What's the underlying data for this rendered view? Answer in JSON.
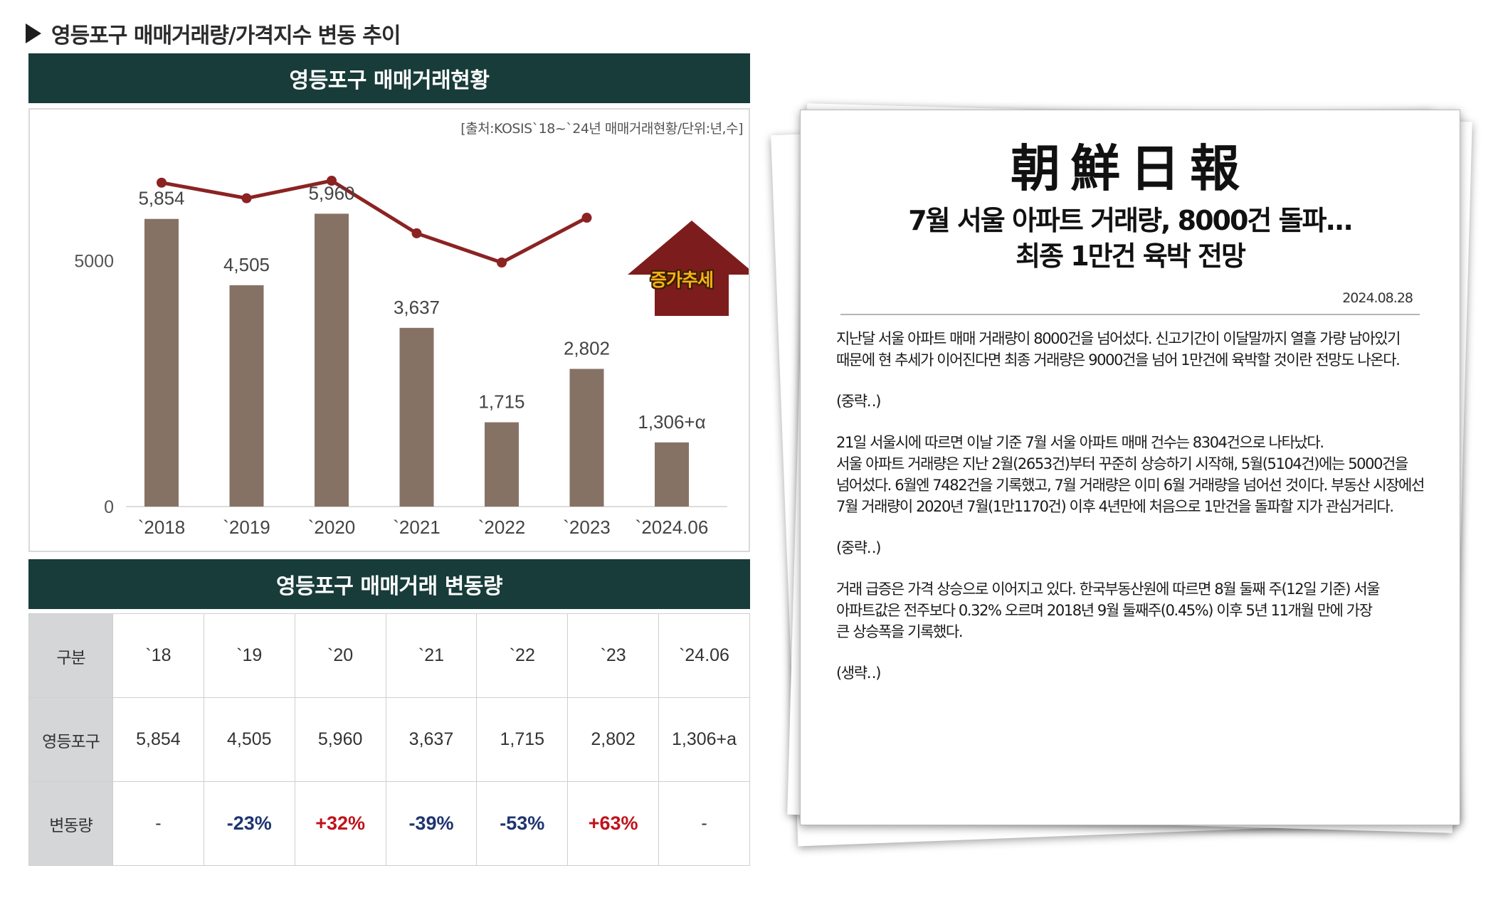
{
  "section_title": "영등포구 매매거래량/가격지수 변동 추이",
  "chart_header": "영등포구 매매거래현황",
  "chart_source": "[출처:KOSIS`18~`24년 매매거래현황/단위:년,수]",
  "trend_label": "증가추세",
  "colors": {
    "header_bg": "#173c3a",
    "bar": "#867265",
    "line": "#8b2323",
    "arrow": "#7d1c1c",
    "negative": "#1e3470",
    "positive": "#c0131b"
  },
  "chart_data": {
    "type": "bar",
    "categories": [
      "`2018",
      "`2019",
      "`2020",
      "`2021",
      "`2022",
      "`2023",
      "`2024.06"
    ],
    "values": [
      5854,
      4505,
      5960,
      3637,
      1715,
      2802,
      1306
    ],
    "value_labels": [
      "5,854",
      "4,505",
      "5,960",
      "3,637",
      "1,715",
      "2,802",
      "1,306+α"
    ],
    "y_ticks": [
      {
        "value": 0,
        "label": "0"
      },
      {
        "value": 5000,
        "label": "5000"
      }
    ],
    "ylim": [
      0,
      7500
    ],
    "line_overlay": {
      "type": "line",
      "points_count": 6,
      "relative_values": [
        90,
        82,
        91,
        64,
        49,
        72
      ]
    },
    "grid": false,
    "legend": "none",
    "title": "",
    "xlabel": "",
    "ylabel": ""
  },
  "table_header": "영등포구 매매거래 변동량",
  "table": {
    "columns": [
      "구분",
      "`18",
      "`19",
      "`20",
      "`21",
      "`22",
      "`23",
      "`24.06"
    ],
    "rows": [
      {
        "label": "영등포구",
        "cells": [
          "5,854",
          "4,505",
          "5,960",
          "3,637",
          "1,715",
          "2,802",
          "1,306+a"
        ]
      },
      {
        "label": "변동량",
        "cells": [
          "-",
          "-23%",
          "+32%",
          "-39%",
          "-53%",
          "+63%",
          "-"
        ],
        "signs": [
          "none",
          "neg",
          "pos",
          "neg",
          "neg",
          "pos",
          "none"
        ]
      }
    ]
  },
  "newspaper": {
    "logo": "朝鮮日報",
    "headline_line1": "7월 서울 아파트 거래량, 8000건 돌파...",
    "headline_line2": "최종 1만건 육박 전망",
    "date": "2024.08.28",
    "paragraphs": [
      [
        "지난달 서울 아파트 매매 거래량이 8000건을 넘어섰다. 신고기간이 이달말까지 열흘 가량 남아있기",
        "때문에 현 추세가 이어진다면 최종 거래량은 9000건을 넘어 1만건에 육박할 것이란 전망도 나온다."
      ],
      [
        "(중략‥)"
      ],
      [
        "21일 서울시에 따르면 이날 기준 7월 서울 아파트 매매 건수는 8304건으로 나타났다.",
        "서울 아파트 거래량은 지난 2월(2653건)부터 꾸준히 상승하기 시작해, 5월(5104건)에는 5000건을",
        "넘어섰다. 6월엔 7482건을 기록했고, 7월 거래량은 이미 6월 거래량을 넘어선 것이다. 부동산 시장에선",
        "7월 거래량이 2020년 7월(1만1170건) 이후 4년만에 처음으로 1만건을 돌파할 지가 관심거리다."
      ],
      [
        "(중략‥)"
      ],
      [
        "거래 급증은 가격 상승으로 이어지고 있다. 한국부동산원에 따르면 8월 둘째 주(12일 기준) 서울",
        "아파트값은 전주보다 0.32% 오르며 2018년 9월 둘째주(0.45%) 이후 5년 11개월 만에 가장",
        "큰 상승폭을 기록했다."
      ],
      [
        "(생략‥)"
      ]
    ]
  }
}
